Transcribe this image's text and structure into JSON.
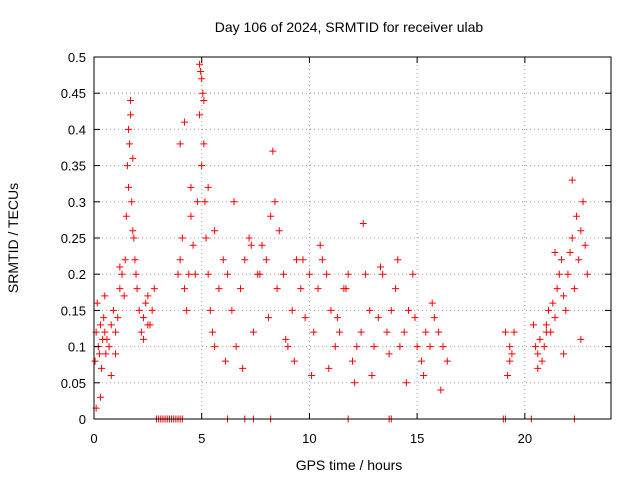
{
  "chart_data": {
    "type": "scatter",
    "title": "Day 106 of 2024, SRMTID for receiver ulab",
    "xlabel": "GPS time / hours",
    "ylabel": "SRMTID / TECUs",
    "xlim": [
      0,
      24
    ],
    "ylim": [
      0,
      0.5
    ],
    "xticks": [
      0,
      5,
      10,
      15,
      20
    ],
    "xtick_labels": [
      "0",
      "5",
      "10",
      "15",
      "20"
    ],
    "yticks": [
      0,
      0.05,
      0.1,
      0.15,
      0.2,
      0.25,
      0.3,
      0.35,
      0.4,
      0.45,
      0.5
    ],
    "ytick_labels": [
      "0",
      "0.05",
      "0.1",
      "0.15",
      "0.2",
      "0.25",
      "0.3",
      "0.35",
      "0.4",
      "0.45",
      "0.5"
    ],
    "grid": true,
    "marker": "plus",
    "color": "#ff0000",
    "series": [
      {
        "name": "SRMTID",
        "x": [
          0.05,
          0.1,
          0.15,
          0.2,
          0.25,
          0.3,
          0.35,
          0.4,
          0.45,
          0.5,
          0.55,
          0.6,
          0.7,
          0.8,
          0.9,
          1.0,
          1.1,
          1.2,
          1.3,
          1.4,
          1.45,
          1.5,
          1.55,
          1.6,
          1.65,
          1.7,
          1.75,
          1.8,
          1.85,
          1.9,
          1.95,
          2.0,
          2.1,
          2.2,
          2.3,
          2.4,
          2.5,
          2.6,
          2.7,
          2.8,
          3.9,
          4.0,
          4.1,
          4.2,
          4.3,
          4.4,
          4.5,
          4.6,
          4.7,
          4.8,
          4.9,
          4.95,
          5.0,
          5.05,
          5.1,
          5.15,
          5.2,
          5.3,
          5.4,
          5.5,
          5.6,
          5.8,
          6.0,
          6.2,
          6.4,
          6.6,
          6.8,
          7.0,
          7.2,
          7.4,
          7.6,
          7.8,
          8.0,
          8.2,
          8.4,
          8.6,
          8.8,
          9.0,
          9.2,
          9.4,
          9.6,
          9.8,
          10.0,
          10.2,
          10.4,
          10.6,
          10.8,
          11.0,
          11.2,
          11.4,
          11.6,
          11.8,
          12.0,
          12.2,
          12.4,
          12.6,
          12.8,
          13.0,
          13.2,
          13.4,
          13.6,
          13.8,
          14.0,
          14.2,
          14.4,
          14.6,
          14.8,
          15.0,
          15.2,
          15.4,
          15.6,
          15.8,
          16.0,
          16.2,
          16.4,
          19.1,
          19.2,
          19.3,
          19.4,
          19.5,
          20.4,
          20.5,
          20.6,
          20.7,
          20.8,
          20.9,
          21.0,
          21.1,
          21.2,
          21.3,
          21.4,
          21.5,
          21.6,
          21.7,
          21.8,
          21.9,
          22.0,
          22.1,
          22.2,
          22.3,
          22.4,
          22.5,
          22.6,
          22.7,
          22.8,
          22.9,
          0.1,
          0.3,
          0.5,
          0.8,
          1.0,
          1.2,
          1.6,
          1.7,
          1.8,
          2.3,
          2.5,
          4.0,
          4.2,
          4.5,
          4.9,
          5.0,
          5.1,
          5.3,
          5.6,
          6.1,
          6.5,
          6.9,
          7.3,
          7.7,
          8.1,
          8.3,
          8.5,
          8.9,
          9.3,
          9.7,
          10.1,
          10.5,
          10.9,
          11.3,
          11.7,
          12.1,
          12.5,
          12.9,
          13.3,
          13.7,
          14.1,
          14.5,
          14.9,
          15.3,
          15.7,
          16.1,
          19.3,
          20.6,
          21.0,
          21.4,
          21.8,
          22.2,
          22.6,
          2.9,
          3.0,
          3.1,
          3.2,
          3.3,
          3.4,
          3.5,
          3.6,
          3.7,
          3.8,
          3.9,
          4.0,
          4.1,
          6.2,
          7.0,
          7.4,
          8.2,
          11.8,
          13.7,
          13.8,
          19.0,
          19.1,
          20.3,
          22.3
        ],
        "y": [
          0.08,
          0.12,
          0.16,
          0.1,
          0.09,
          0.13,
          0.07,
          0.11,
          0.14,
          0.12,
          0.09,
          0.11,
          0.1,
          0.13,
          0.15,
          0.12,
          0.14,
          0.18,
          0.2,
          0.17,
          0.22,
          0.28,
          0.35,
          0.4,
          0.38,
          0.42,
          0.3,
          0.36,
          0.25,
          0.22,
          0.2,
          0.18,
          0.15,
          0.12,
          0.14,
          0.16,
          0.17,
          0.13,
          0.15,
          0.18,
          0.2,
          0.22,
          0.25,
          0.18,
          0.15,
          0.2,
          0.28,
          0.24,
          0.2,
          0.3,
          0.42,
          0.48,
          0.47,
          0.45,
          0.38,
          0.3,
          0.25,
          0.2,
          0.15,
          0.12,
          0.1,
          0.18,
          0.22,
          0.2,
          0.15,
          0.1,
          0.18,
          0.22,
          0.25,
          0.12,
          0.2,
          0.24,
          0.22,
          0.28,
          0.3,
          0.26,
          0.2,
          0.1,
          0.15,
          0.22,
          0.18,
          0.14,
          0.2,
          0.12,
          0.18,
          0.22,
          0.2,
          0.15,
          0.1,
          0.12,
          0.18,
          0.2,
          0.08,
          0.1,
          0.12,
          0.2,
          0.15,
          0.1,
          0.14,
          0.2,
          0.12,
          0.15,
          0.18,
          0.1,
          0.12,
          0.15,
          0.2,
          0.1,
          0.08,
          0.12,
          0.1,
          0.14,
          0.12,
          0.1,
          0.08,
          0.12,
          0.06,
          0.1,
          0.09,
          0.12,
          0.13,
          0.1,
          0.09,
          0.11,
          0.08,
          0.1,
          0.13,
          0.15,
          0.12,
          0.16,
          0.14,
          0.18,
          0.2,
          0.22,
          0.17,
          0.15,
          0.2,
          0.23,
          0.25,
          0.18,
          0.28,
          0.22,
          0.26,
          0.3,
          0.24,
          0.2,
          0.015,
          0.03,
          0.17,
          0.06,
          0.09,
          0.21,
          0.32,
          0.44,
          0.26,
          0.11,
          0.13,
          0.38,
          0.41,
          0.32,
          0.49,
          0.35,
          0.44,
          0.32,
          0.26,
          0.08,
          0.3,
          0.07,
          0.24,
          0.2,
          0.14,
          0.37,
          0.18,
          0.11,
          0.08,
          0.22,
          0.06,
          0.24,
          0.07,
          0.14,
          0.18,
          0.05,
          0.27,
          0.06,
          0.21,
          0.09,
          0.22,
          0.05,
          0.14,
          0.06,
          0.16,
          0.04,
          0.08,
          0.07,
          0.12,
          0.23,
          0.09,
          0.33,
          0.11,
          0.0,
          0.0,
          0.0,
          0.0,
          0.0,
          0.0,
          0.0,
          0.0,
          0.0,
          0.0,
          0.0,
          0.0,
          0.0,
          0.0,
          0.0,
          0.0,
          0.0,
          0.0,
          0.0,
          0.0,
          0.0,
          0.0,
          0.0,
          0.0
        ]
      }
    ]
  }
}
